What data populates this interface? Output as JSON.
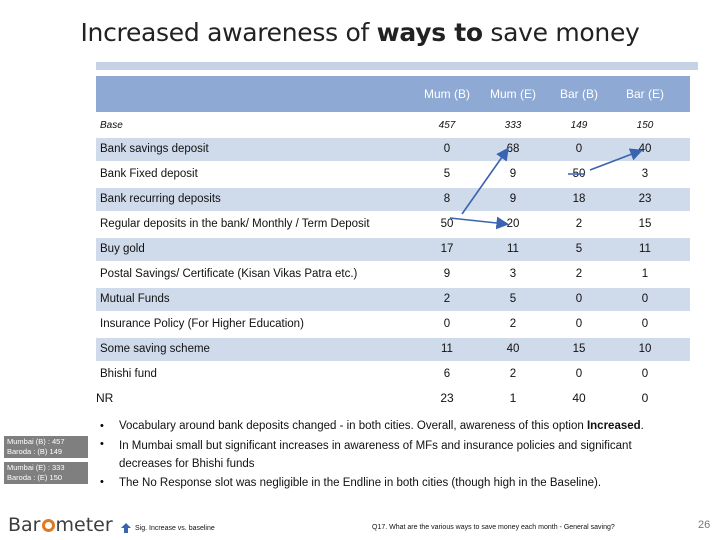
{
  "title": {
    "prefix": "Increased awareness of ",
    "bold": "ways to",
    "suffix": " save money"
  },
  "columns": [
    "Mum (B)",
    "Mum (E)",
    "Bar (B)",
    "Bar (E)"
  ],
  "base": {
    "label": "Base",
    "values": [
      "457",
      "333",
      "149",
      "150"
    ]
  },
  "rows": [
    {
      "label": "Bank savings deposit",
      "values": [
        "0",
        "68",
        "0",
        "40"
      ]
    },
    {
      "label": "Bank Fixed deposit",
      "values": [
        "5",
        "9",
        "50",
        "3"
      ]
    },
    {
      "label": "Bank recurring deposits",
      "values": [
        "8",
        "9",
        "18",
        "23"
      ]
    },
    {
      "label": "Regular deposits in the bank/ Monthly / Term Deposit",
      "values": [
        "50",
        "20",
        "2",
        "15"
      ]
    },
    {
      "label": "Buy gold",
      "values": [
        "17",
        "11",
        "5",
        "11"
      ]
    },
    {
      "label": "Postal Savings/ Certificate (Kisan Vikas Patra etc.)",
      "values": [
        "9",
        "3",
        "2",
        "1"
      ]
    },
    {
      "label": "Mutual Funds",
      "values": [
        "2",
        "5",
        "0",
        "0"
      ]
    },
    {
      "label": "Insurance Policy (For Higher Education)",
      "values": [
        "0",
        "2",
        "0",
        "0"
      ]
    },
    {
      "label": "Some saving scheme",
      "values": [
        "11",
        "40",
        "15",
        "10"
      ]
    },
    {
      "label": "Bhishi fund",
      "values": [
        "6",
        "2",
        "0",
        "0"
      ]
    }
  ],
  "nr": {
    "label": "NR",
    "values": [
      "23",
      "1",
      "40",
      "0"
    ]
  },
  "legend": {
    "box1": {
      "line1": "Mumbai (B) : 457",
      "line2": "Baroda : (B) 149"
    },
    "box2": {
      "line1": "Mumbai (E) : 333",
      "line2": "Baroda : (E) 150"
    }
  },
  "bullets": {
    "b1": "Vocabulary around bank deposits changed - in both cities. Overall, awareness of this option ",
    "b1_bold": "Increased",
    "b1_end": ".",
    "b2_line1": "In Mumbai small but significant increases in awareness of MFs and insurance policies and significant",
    "b2_line2": "decreases for Bhishi funds",
    "b3": "The No Response slot was negligible in the Endline in both cities (though high in the Baseline)."
  },
  "logo": {
    "part1": "Bar",
    "part2": "meter"
  },
  "footer": {
    "sig_label": "Sig. Increase vs. baseline",
    "question": "Q17. What are the various ways to save money each month - General saving?",
    "page": "26"
  },
  "colors": {
    "header": "#8ea9d3",
    "shade": "#cfdaea",
    "title_rule": "#c6d3e6",
    "legend_box": "#7f7f7f",
    "logo_o": "#e07a1f",
    "arrow": "#3a64b0"
  }
}
